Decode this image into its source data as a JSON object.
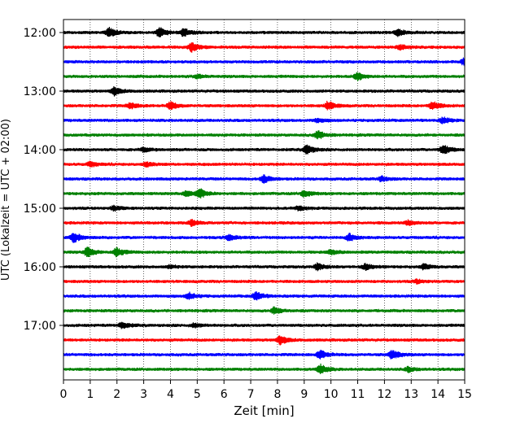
{
  "chart_data": {
    "type": "line",
    "subtype": "helicorder-seismogram",
    "title": "",
    "xlabel": "Zeit  [min]",
    "ylabel": "UTC (Lokalzeit = UTC + 02:00)",
    "xlim": [
      0,
      15
    ],
    "x_ticks": [
      0,
      1,
      2,
      3,
      4,
      5,
      6,
      7,
      8,
      9,
      10,
      11,
      12,
      13,
      14,
      15
    ],
    "x_tick_labels": [
      "0",
      "1",
      "2",
      "3",
      "4",
      "5",
      "6",
      "7",
      "8",
      "9",
      "10",
      "11",
      "12",
      "13",
      "14",
      "15"
    ],
    "vertical_grid": "dotted at every minute",
    "trace_interval_minutes": 15,
    "y_tick_labels": [
      "12:00",
      "13:00",
      "14:00",
      "15:00",
      "16:00",
      "17:00"
    ],
    "color_cycle": [
      "#000000",
      "#ff0000",
      "#0000ff",
      "#008000"
    ],
    "traces": [
      {
        "start": "12:00",
        "events": [
          [
            1.7,
            1.0
          ],
          [
            3.6,
            1.0
          ],
          [
            4.5,
            0.8
          ],
          [
            12.5,
            0.8
          ]
        ]
      },
      {
        "start": "12:15",
        "events": [
          [
            4.8,
            0.9
          ],
          [
            12.6,
            0.5
          ]
        ]
      },
      {
        "start": "12:30",
        "events": [
          [
            15.0,
            0.9
          ]
        ]
      },
      {
        "start": "12:45",
        "events": [
          [
            11.0,
            0.8
          ],
          [
            5.0,
            0.4
          ]
        ]
      },
      {
        "start": "13:00",
        "events": [
          [
            1.9,
            0.8
          ]
        ]
      },
      {
        "start": "13:15",
        "events": [
          [
            2.5,
            0.6
          ],
          [
            4.0,
            0.8
          ],
          [
            9.9,
            0.9
          ],
          [
            13.8,
            0.9
          ]
        ]
      },
      {
        "start": "13:30",
        "events": [
          [
            9.5,
            0.4
          ],
          [
            14.2,
            0.6
          ]
        ]
      },
      {
        "start": "13:45",
        "events": [
          [
            9.5,
            0.9
          ]
        ]
      },
      {
        "start": "14:00",
        "events": [
          [
            9.1,
            1.0
          ],
          [
            14.2,
            1.0
          ],
          [
            3.0,
            0.4
          ]
        ]
      },
      {
        "start": "14:15",
        "events": [
          [
            1.0,
            0.5
          ],
          [
            3.1,
            0.4
          ]
        ]
      },
      {
        "start": "14:30",
        "events": [
          [
            7.5,
            0.8
          ],
          [
            11.9,
            0.5
          ]
        ]
      },
      {
        "start": "14:45",
        "events": [
          [
            5.1,
            1.0
          ],
          [
            9.0,
            0.7
          ],
          [
            4.6,
            0.6
          ]
        ]
      },
      {
        "start": "15:00",
        "events": [
          [
            1.9,
            0.5
          ],
          [
            8.8,
            0.4
          ]
        ]
      },
      {
        "start": "15:15",
        "events": [
          [
            4.8,
            0.6
          ],
          [
            12.9,
            0.5
          ]
        ]
      },
      {
        "start": "15:30",
        "events": [
          [
            0.4,
            1.0
          ],
          [
            6.2,
            0.6
          ],
          [
            10.7,
            0.8
          ]
        ]
      },
      {
        "start": "15:45",
        "events": [
          [
            0.9,
            1.0
          ],
          [
            2.0,
            0.9
          ],
          [
            10.0,
            0.5
          ]
        ]
      },
      {
        "start": "16:00",
        "events": [
          [
            9.5,
            0.7
          ],
          [
            11.3,
            0.6
          ],
          [
            13.5,
            0.6
          ],
          [
            4.0,
            0.3
          ]
        ]
      },
      {
        "start": "16:15",
        "events": [
          [
            13.2,
            0.4
          ]
        ]
      },
      {
        "start": "16:30",
        "events": [
          [
            4.7,
            0.7
          ],
          [
            7.2,
            0.9
          ]
        ]
      },
      {
        "start": "16:45",
        "events": [
          [
            7.9,
            0.7
          ]
        ]
      },
      {
        "start": "17:00",
        "events": [
          [
            2.2,
            0.7
          ],
          [
            4.9,
            0.4
          ]
        ]
      },
      {
        "start": "17:15",
        "events": [
          [
            8.1,
            0.9
          ]
        ]
      },
      {
        "start": "17:30",
        "events": [
          [
            9.6,
            0.9
          ],
          [
            12.3,
            1.0
          ]
        ]
      },
      {
        "start": "17:45",
        "events": [
          [
            9.6,
            1.0
          ],
          [
            12.9,
            0.5
          ]
        ]
      }
    ]
  }
}
